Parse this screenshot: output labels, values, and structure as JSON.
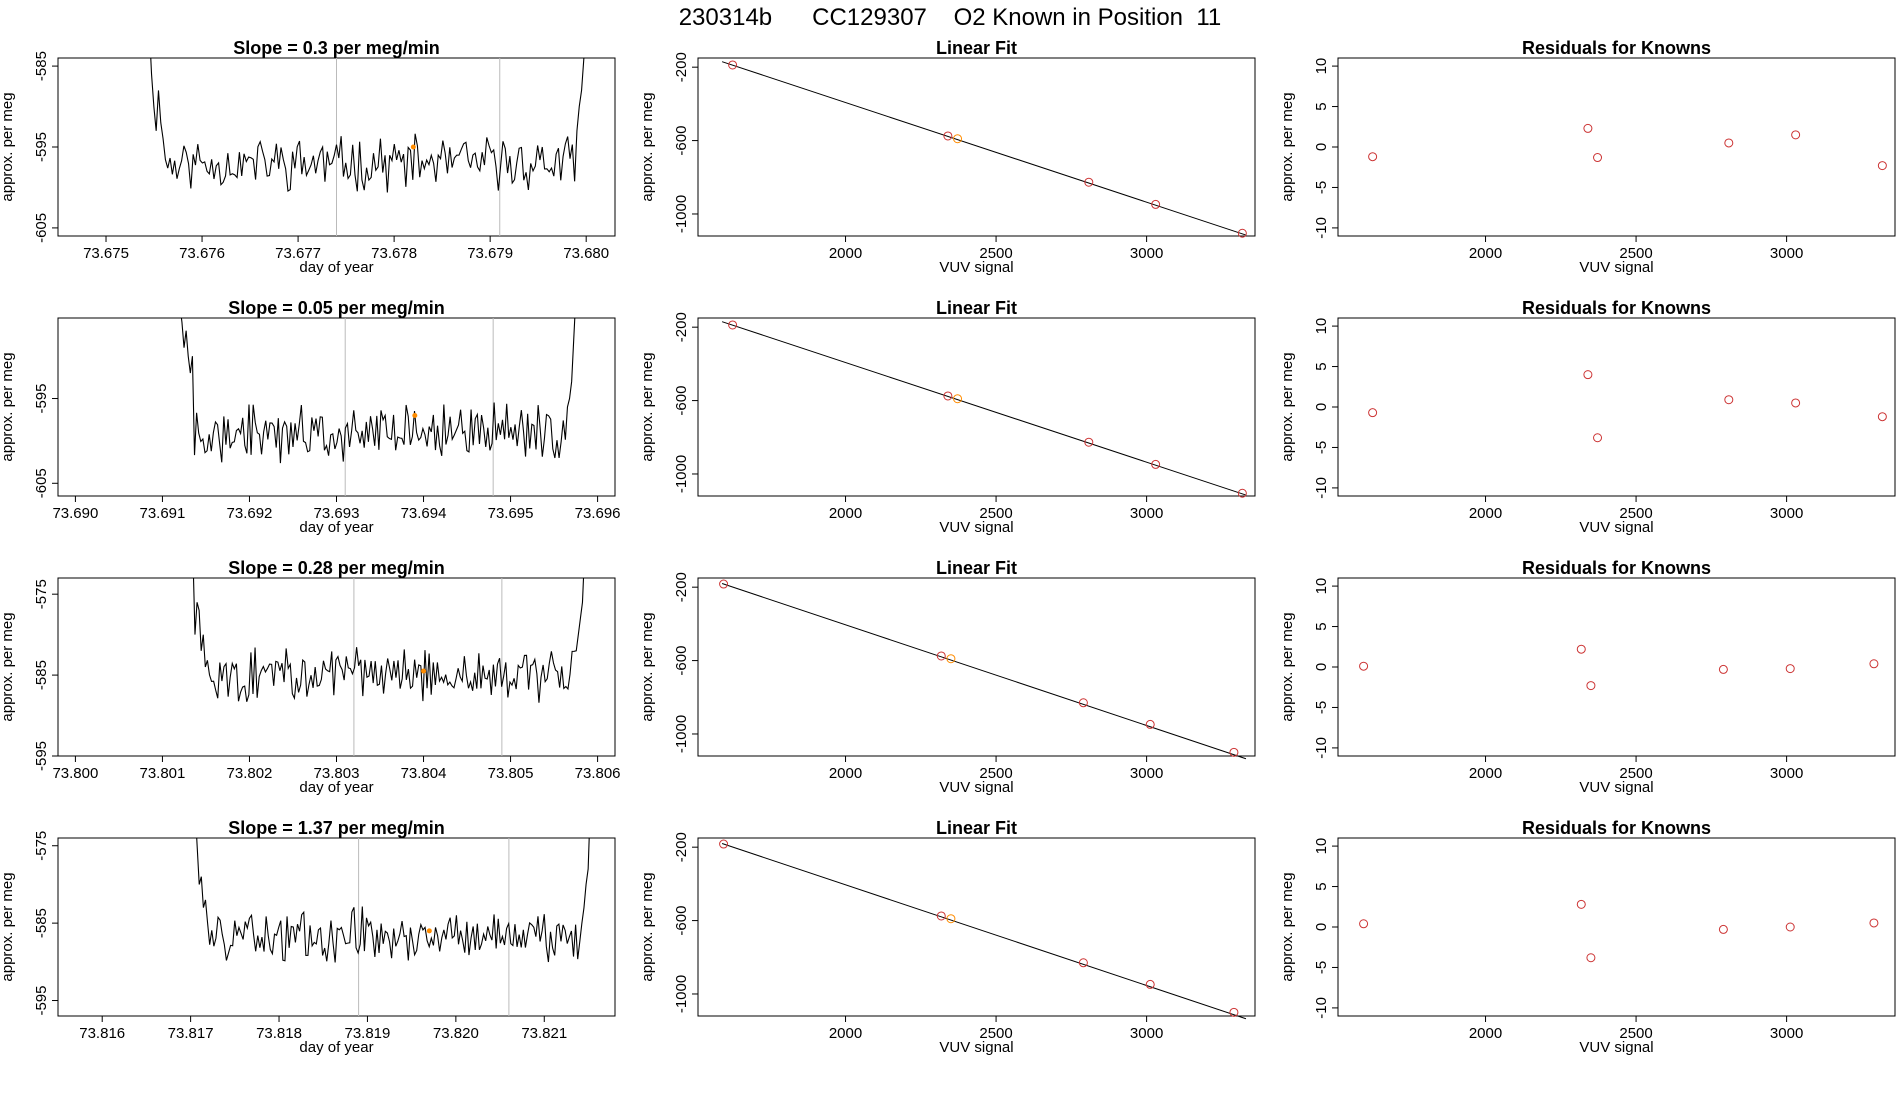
{
  "title": "230314b      CC129307    O2 Known in Position  11",
  "colors": {
    "line": "#000000",
    "marker": "#cc3333",
    "highlight": "#ff8c00",
    "vline": "#bbbbbb",
    "frame": "#000000"
  },
  "rows": [
    {
      "time_plot": {
        "title": "Slope =  0.3  per meg/min",
        "xlabel": "day of year",
        "ylabel": "approx. per meg",
        "xlim": [
          73.6745,
          73.6803
        ],
        "ylim": [
          -606,
          -584
        ],
        "xticks": [
          "73.675",
          "73.676",
          "73.677",
          "73.678",
          "73.679",
          "73.680"
        ],
        "yticks": [
          "-585",
          "-595",
          "-605"
        ],
        "vlines": [
          73.6774,
          73.6791
        ],
        "highlight": [
          73.6782,
          -595
        ],
        "trace": {
          "x_start": 73.67545,
          "x_end": 73.68,
          "baseline": -597,
          "amplitude": 2.6,
          "edge_rise": 10,
          "seed": 11,
          "left_edge_values": [
            -580,
            -586,
            -590,
            -593,
            -588,
            -592,
            -594
          ],
          "right_edge_values": [
            -593,
            -590,
            -588,
            -584,
            -580
          ]
        }
      },
      "fit_plot": {
        "title": "Linear Fit",
        "xlabel": "VUV signal",
        "ylabel": "approx. per meg",
        "xlim": [
          1510,
          3360
        ],
        "ylim": [
          -1120,
          -150
        ],
        "xticks": [
          "2000",
          "2500",
          "3000"
        ],
        "yticks": [
          "-200",
          "-600",
          "-1000"
        ],
        "line": [
          [
            1590,
            -170
          ],
          [
            3330,
            -1115
          ]
        ],
        "points": [
          [
            1625,
            -188
          ],
          [
            2340,
            -575
          ],
          [
            2372,
            -590
          ],
          [
            2808,
            -827
          ],
          [
            3030,
            -948
          ],
          [
            3318,
            -1105
          ]
        ],
        "highlight_index": 2
      },
      "residual_plot": {
        "title": "Residuals for Knowns",
        "xlabel": "VUV signal",
        "ylabel": "approx. per meg",
        "xlim": [
          1510,
          3360
        ],
        "ylim": [
          -11,
          11
        ],
        "xticks": [
          "2000",
          "2500",
          "3000"
        ],
        "yticks": [
          "10",
          "5",
          "0",
          "-5",
          "-10"
        ],
        "points": [
          [
            1625,
            -1.2
          ],
          [
            2340,
            2.3
          ],
          [
            2372,
            -1.3
          ],
          [
            2808,
            0.5
          ],
          [
            3030,
            1.5
          ],
          [
            3318,
            -2.3
          ]
        ]
      }
    },
    {
      "time_plot": {
        "title": "Slope =  0.05  per meg/min",
        "xlabel": "day of year",
        "ylabel": "approx. per meg",
        "xlim": [
          73.6898,
          73.6962
        ],
        "ylim": [
          -606.5,
          -585.5
        ],
        "xticks": [
          "73.690",
          "73.691",
          "73.692",
          "73.693",
          "73.694",
          "73.695",
          "73.696"
        ],
        "yticks": [
          "-595",
          "-605"
        ],
        "vlines": [
          73.6931,
          73.6948
        ],
        "highlight": [
          73.6939,
          -597
        ],
        "trace": {
          "x_start": 73.6912,
          "x_end": 73.69575,
          "baseline": -599,
          "amplitude": 2.6,
          "edge_rise": 10,
          "seed": 27,
          "left_edge_values": [
            -584,
            -586,
            -589,
            -587,
            -590,
            -592,
            -590
          ],
          "right_edge_values": [
            -596,
            -595,
            -593,
            -588,
            -583
          ]
        }
      },
      "fit_plot": {
        "title": "Linear Fit",
        "xlabel": "VUV signal",
        "ylabel": "approx. per meg",
        "xlim": [
          1510,
          3360
        ],
        "ylim": [
          -1120,
          -150
        ],
        "xticks": [
          "2000",
          "2500",
          "3000"
        ],
        "yticks": [
          "-200",
          "-600",
          "-1000"
        ],
        "line": [
          [
            1590,
            -170
          ],
          [
            3330,
            -1115
          ]
        ],
        "points": [
          [
            1625,
            -188
          ],
          [
            2340,
            -575
          ],
          [
            2372,
            -590
          ],
          [
            2808,
            -827
          ],
          [
            3030,
            -948
          ],
          [
            3318,
            -1105
          ]
        ],
        "highlight_index": 2
      },
      "residual_plot": {
        "title": "Residuals for Knowns",
        "xlabel": "VUV signal",
        "ylabel": "approx. per meg",
        "xlim": [
          1510,
          3360
        ],
        "ylim": [
          -11,
          11
        ],
        "xticks": [
          "2000",
          "2500",
          "3000"
        ],
        "yticks": [
          "10",
          "5",
          "0",
          "-5",
          "-10"
        ],
        "points": [
          [
            1625,
            -0.7
          ],
          [
            2340,
            4.0
          ],
          [
            2372,
            -3.8
          ],
          [
            2808,
            0.9
          ],
          [
            3030,
            0.5
          ],
          [
            3318,
            -1.2
          ]
        ]
      }
    },
    {
      "time_plot": {
        "title": "Slope =  0.28  per meg/min",
        "xlabel": "day of year",
        "ylabel": "approx. per meg",
        "xlim": [
          73.7998,
          73.8062
        ],
        "ylim": [
          -595,
          -573
        ],
        "xticks": [
          "73.800",
          "73.801",
          "73.802",
          "73.803",
          "73.804",
          "73.805",
          "73.806"
        ],
        "yticks": [
          "-575",
          "-585",
          "-595"
        ],
        "vlines": [
          73.8032,
          73.8049
        ],
        "highlight": [
          73.804,
          -584.5
        ],
        "trace": {
          "x_start": 73.80135,
          "x_end": 73.80585,
          "baseline": -585,
          "amplitude": 2.6,
          "edge_rise": 10,
          "seed": 43,
          "left_edge_values": [
            -570,
            -580,
            -576,
            -577,
            -582,
            -580,
            -584
          ],
          "right_edge_values": [
            -582,
            -580,
            -578,
            -576,
            -570
          ]
        }
      },
      "fit_plot": {
        "title": "Linear Fit",
        "xlabel": "VUV signal",
        "ylabel": "approx. per meg",
        "xlim": [
          1510,
          3360
        ],
        "ylim": [
          -1120,
          -150
        ],
        "xticks": [
          "2000",
          "2500",
          "3000"
        ],
        "yticks": [
          "-200",
          "-600",
          "-1000"
        ],
        "line": [
          [
            1590,
            -180
          ],
          [
            3330,
            -1135
          ]
        ],
        "points": [
          [
            1595,
            -183
          ],
          [
            2318,
            -575
          ],
          [
            2350,
            -590
          ],
          [
            2790,
            -830
          ],
          [
            3012,
            -948
          ],
          [
            3290,
            -1100
          ]
        ],
        "highlight_index": 2
      },
      "residual_plot": {
        "title": "Residuals for Knowns",
        "xlabel": "VUV signal",
        "ylabel": "approx. per meg",
        "xlim": [
          1510,
          3360
        ],
        "ylim": [
          -11,
          11
        ],
        "xticks": [
          "2000",
          "2500",
          "3000"
        ],
        "yticks": [
          "10",
          "5",
          "0",
          "-5",
          "-10"
        ],
        "points": [
          [
            1595,
            0.1
          ],
          [
            2318,
            2.2
          ],
          [
            2350,
            -2.3
          ],
          [
            2790,
            -0.3
          ],
          [
            3012,
            -0.2
          ],
          [
            3290,
            0.4
          ]
        ]
      }
    },
    {
      "time_plot": {
        "title": "Slope =  1.37  per meg/min",
        "xlabel": "day of year",
        "ylabel": "approx. per meg",
        "xlim": [
          73.8155,
          73.8218
        ],
        "ylim": [
          -597,
          -574
        ],
        "xticks": [
          "73.816",
          "73.817",
          "73.818",
          "73.819",
          "73.820",
          "73.821"
        ],
        "yticks": [
          "-575",
          "-585",
          "-595"
        ],
        "vlines": [
          73.8189,
          73.8206
        ],
        "highlight": [
          73.8197,
          -586
        ],
        "trace": {
          "x_start": 73.81705,
          "x_end": 73.82152,
          "baseline": -586.5,
          "amplitude": 2.6,
          "edge_rise": 10,
          "seed": 59,
          "left_edge_values": [
            -570,
            -575,
            -580,
            -579,
            -583,
            -582,
            -585
          ],
          "right_edge_values": [
            -585,
            -583,
            -580,
            -578,
            -570
          ]
        }
      },
      "fit_plot": {
        "title": "Linear Fit",
        "xlabel": "VUV signal",
        "ylabel": "approx. per meg",
        "xlim": [
          1510,
          3360
        ],
        "ylim": [
          -1120,
          -150
        ],
        "xticks": [
          "2000",
          "2500",
          "3000"
        ],
        "yticks": [
          "-200",
          "-600",
          "-1000"
        ],
        "line": [
          [
            1590,
            -180
          ],
          [
            3330,
            -1135
          ]
        ],
        "points": [
          [
            1595,
            -183
          ],
          [
            2318,
            -575
          ],
          [
            2350,
            -590
          ],
          [
            2790,
            -830
          ],
          [
            3012,
            -948
          ],
          [
            3290,
            -1100
          ]
        ],
        "highlight_index": 2
      },
      "residual_plot": {
        "title": "Residuals for Knowns",
        "xlabel": "VUV signal",
        "ylabel": "approx. per meg",
        "xlim": [
          1510,
          3360
        ],
        "ylim": [
          -11,
          11
        ],
        "xticks": [
          "2000",
          "2500",
          "3000"
        ],
        "yticks": [
          "10",
          "5",
          "0",
          "-5",
          "-10"
        ],
        "points": [
          [
            1595,
            0.4
          ],
          [
            2318,
            2.8
          ],
          [
            2350,
            -3.8
          ],
          [
            2790,
            -0.3
          ],
          [
            3012,
            0.0
          ],
          [
            3290,
            0.5
          ]
        ]
      }
    }
  ]
}
